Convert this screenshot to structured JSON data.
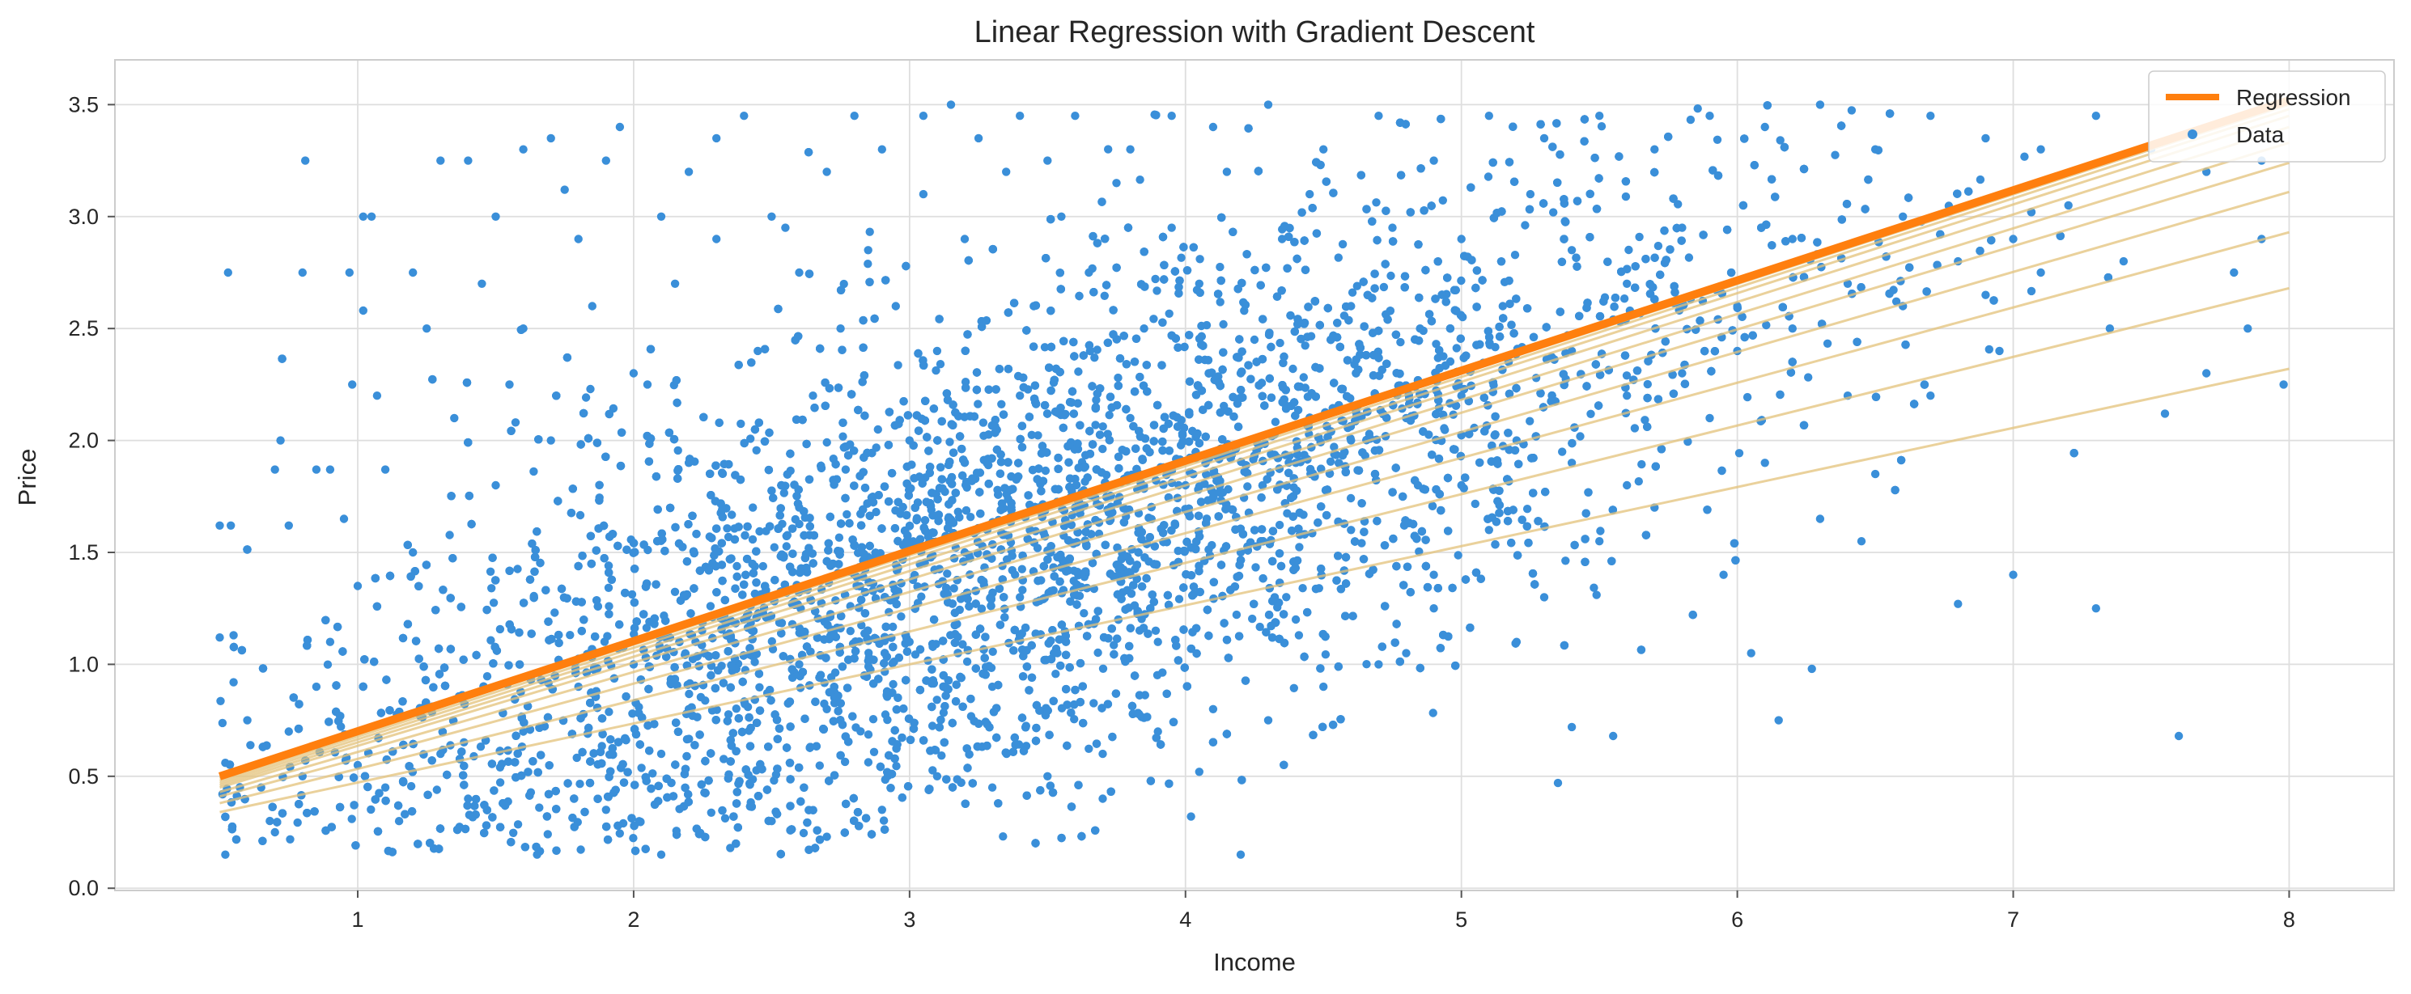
{
  "chart_data": {
    "type": "scatter",
    "title": "Linear Regression with Gradient Descent",
    "xlabel": "Income",
    "ylabel": "Price",
    "xlim": [
      0.12,
      8.38
    ],
    "ylim": [
      -0.01,
      3.7
    ],
    "x_ticks": [
      1,
      2,
      3,
      4,
      5,
      6,
      7,
      8
    ],
    "y_ticks": [
      0.0,
      0.5,
      1.0,
      1.5,
      2.0,
      2.5,
      3.0,
      3.5
    ],
    "y_tick_labels": [
      "0.0",
      "0.5",
      "1.0",
      "1.5",
      "2.0",
      "2.5",
      "3.0",
      "3.5"
    ],
    "grid": true,
    "legend": {
      "placement": "top-right",
      "entries": [
        "Regression",
        "Data"
      ]
    },
    "colors": {
      "data": "#3a8fd9",
      "regression": "#ff7f0e",
      "iterations": "#e3c27a"
    },
    "regression_line": {
      "name": "Regression",
      "x": [
        0.5,
        8.0
      ],
      "y": [
        0.5,
        3.52
      ]
    },
    "gradient_descent_iterations": [
      {
        "x": [
          0.5,
          8.0
        ],
        "y": [
          0.34,
          2.32
        ]
      },
      {
        "x": [
          0.5,
          8.0
        ],
        "y": [
          0.38,
          2.68
        ]
      },
      {
        "x": [
          0.5,
          8.0
        ],
        "y": [
          0.41,
          2.93
        ]
      },
      {
        "x": [
          0.5,
          8.0
        ],
        "y": [
          0.43,
          3.11
        ]
      },
      {
        "x": [
          0.5,
          8.0
        ],
        "y": [
          0.45,
          3.24
        ]
      },
      {
        "x": [
          0.5,
          8.0
        ],
        "y": [
          0.46,
          3.33
        ]
      },
      {
        "x": [
          0.5,
          8.0
        ],
        "y": [
          0.47,
          3.4
        ]
      },
      {
        "x": [
          0.5,
          8.0
        ],
        "y": [
          0.48,
          3.45
        ]
      },
      {
        "x": [
          0.5,
          8.0
        ],
        "y": [
          0.49,
          3.48
        ]
      },
      {
        "x": [
          0.5,
          8.0
        ],
        "y": [
          0.495,
          3.5
        ]
      },
      {
        "x": [
          0.5,
          8.0
        ],
        "y": [
          0.498,
          3.51
        ]
      }
    ],
    "scatter_series": {
      "name": "Data",
      "points": [
        [
          0.52,
          0.15
        ],
        [
          0.53,
          2.75
        ],
        [
          0.5,
          1.62
        ],
        [
          0.54,
          1.62
        ],
        [
          0.5,
          1.12
        ],
        [
          0.55,
          1.13
        ],
        [
          0.52,
          0.56
        ],
        [
          0.55,
          0.92
        ],
        [
          0.6,
          0.75
        ],
        [
          0.7,
          1.87
        ],
        [
          0.72,
          2.0
        ],
        [
          0.75,
          1.62
        ],
        [
          0.81,
          3.25
        ],
        [
          0.8,
          2.75
        ],
        [
          0.85,
          1.87
        ],
        [
          0.9,
          1.87
        ],
        [
          0.97,
          2.75
        ],
        [
          0.98,
          2.25
        ],
        [
          1.02,
          3.0
        ],
        [
          1.05,
          3.0
        ],
        [
          1.02,
          2.58
        ],
        [
          1.07,
          2.2
        ],
        [
          1.1,
          1.87
        ],
        [
          1.2,
          2.75
        ],
        [
          1.25,
          2.5
        ],
        [
          1.3,
          3.25
        ],
        [
          1.4,
          3.25
        ],
        [
          1.45,
          2.7
        ],
        [
          1.5,
          3.0
        ],
        [
          1.55,
          2.25
        ],
        [
          1.6,
          3.3
        ],
        [
          1.7,
          3.35
        ],
        [
          1.75,
          3.12
        ],
        [
          1.8,
          2.9
        ],
        [
          1.9,
          3.25
        ],
        [
          1.95,
          3.4
        ],
        [
          2.05,
          2.25
        ],
        [
          2.1,
          3.0
        ],
        [
          2.2,
          3.2
        ],
        [
          2.3,
          3.35
        ],
        [
          2.4,
          3.45
        ],
        [
          2.5,
          3.0
        ],
        [
          2.6,
          2.75
        ],
        [
          2.7,
          3.2
        ],
        [
          2.8,
          3.45
        ],
        [
          2.9,
          3.3
        ],
        [
          3.05,
          3.45
        ],
        [
          3.15,
          3.5
        ],
        [
          3.25,
          3.35
        ],
        [
          3.4,
          3.45
        ],
        [
          3.5,
          3.25
        ],
        [
          3.6,
          3.45
        ],
        [
          3.8,
          3.3
        ],
        [
          3.95,
          3.45
        ],
        [
          4.1,
          3.4
        ],
        [
          4.3,
          3.5
        ],
        [
          4.5,
          3.3
        ],
        [
          4.7,
          3.45
        ],
        [
          4.9,
          3.25
        ],
        [
          5.1,
          3.45
        ],
        [
          5.3,
          3.35
        ],
        [
          5.5,
          3.45
        ],
        [
          5.7,
          3.3
        ],
        [
          5.9,
          3.45
        ],
        [
          6.1,
          3.4
        ],
        [
          6.3,
          3.5
        ],
        [
          6.5,
          3.3
        ],
        [
          6.7,
          3.45
        ],
        [
          6.9,
          3.35
        ],
        [
          7.1,
          3.3
        ],
        [
          7.3,
          3.45
        ],
        [
          7.5,
          3.3
        ],
        [
          7.7,
          3.2
        ],
        [
          7.9,
          3.25
        ],
        [
          7.98,
          2.25
        ],
        [
          7.85,
          2.5
        ],
        [
          7.7,
          2.3
        ],
        [
          7.55,
          2.12
        ],
        [
          7.6,
          0.68
        ],
        [
          7.3,
          1.25
        ],
        [
          7.0,
          1.4
        ],
        [
          6.8,
          1.27
        ],
        [
          6.45,
          1.55
        ],
        [
          6.15,
          0.75
        ],
        [
          6.27,
          0.98
        ],
        [
          6.05,
          1.05
        ],
        [
          5.95,
          1.4
        ],
        [
          5.55,
          0.68
        ],
        [
          5.35,
          0.47
        ],
        [
          5.4,
          0.72
        ],
        [
          4.2,
          0.15
        ],
        [
          4.02,
          0.32
        ],
        [
          4.05,
          0.52
        ],
        [
          3.7,
          0.4
        ],
        [
          2.7,
          0.23
        ],
        [
          2.1,
          0.15
        ],
        [
          1.65,
          0.15
        ],
        [
          2.35,
          0.18
        ],
        [
          4.8,
          1.05
        ],
        [
          5.2,
          1.1
        ],
        [
          0.95,
          1.65
        ],
        [
          1.0,
          1.35
        ],
        [
          0.9,
          1.1
        ],
        [
          0.85,
          0.9
        ],
        [
          0.75,
          0.7
        ],
        [
          0.65,
          0.45
        ],
        [
          0.7,
          0.25
        ],
        [
          0.8,
          0.5
        ],
        [
          1.15,
          0.3
        ],
        [
          1.2,
          1.5
        ],
        [
          1.35,
          2.1
        ],
        [
          1.5,
          1.8
        ],
        [
          1.6,
          2.5
        ],
        [
          1.7,
          2.0
        ],
        [
          1.85,
          2.6
        ],
        [
          2.0,
          2.3
        ],
        [
          2.15,
          2.7
        ],
        [
          2.3,
          2.9
        ],
        [
          2.45,
          2.4
        ],
        [
          2.55,
          2.95
        ],
        [
          2.65,
          2.2
        ],
        [
          2.75,
          2.5
        ],
        [
          2.85,
          2.85
        ],
        [
          2.95,
          2.6
        ],
        [
          3.05,
          3.1
        ],
        [
          3.1,
          2.4
        ],
        [
          3.2,
          2.9
        ],
        [
          3.35,
          3.2
        ],
        [
          3.45,
          2.6
        ],
        [
          3.55,
          3.0
        ],
        [
          3.65,
          2.75
        ],
        [
          3.75,
          3.15
        ],
        [
          3.85,
          2.5
        ],
        [
          3.95,
          2.95
        ],
        [
          4.05,
          2.7
        ],
        [
          4.15,
          3.2
        ],
        [
          4.25,
          2.45
        ],
        [
          4.35,
          2.9
        ],
        [
          4.45,
          3.1
        ],
        [
          4.6,
          2.6
        ],
        [
          4.75,
          2.95
        ],
        [
          4.85,
          2.5
        ],
        [
          5.0,
          2.9
        ],
        [
          5.15,
          2.6
        ],
        [
          5.25,
          3.1
        ],
        [
          5.4,
          2.85
        ],
        [
          5.6,
          2.7
        ],
        [
          5.8,
          2.95
        ],
        [
          6.0,
          2.6
        ],
        [
          6.2,
          2.9
        ],
        [
          6.4,
          2.7
        ],
        [
          6.6,
          3.0
        ],
        [
          6.8,
          2.8
        ],
        [
          7.0,
          2.9
        ],
        [
          7.2,
          3.05
        ],
        [
          7.4,
          2.8
        ],
        [
          7.8,
          2.75
        ],
        [
          7.9,
          2.9
        ],
        [
          6.95,
          2.4
        ],
        [
          6.7,
          2.2
        ],
        [
          6.5,
          1.85
        ],
        [
          6.3,
          1.65
        ],
        [
          6.1,
          1.9
        ],
        [
          5.9,
          2.1
        ],
        [
          5.7,
          1.7
        ],
        [
          5.5,
          1.55
        ],
        [
          5.3,
          1.3
        ],
        [
          5.1,
          1.6
        ],
        [
          4.9,
          1.25
        ],
        [
          4.7,
          1.0
        ],
        [
          4.5,
          0.9
        ],
        [
          4.3,
          0.75
        ],
        [
          4.1,
          0.8
        ],
        [
          3.9,
          0.7
        ],
        [
          3.7,
          0.6
        ],
        [
          3.5,
          0.5
        ],
        [
          3.3,
          0.45
        ],
        [
          3.1,
          0.5
        ],
        [
          2.9,
          0.35
        ],
        [
          2.5,
          0.3
        ],
        [
          1.9,
          0.35
        ],
        [
          1.4,
          0.4
        ],
        [
          1.1,
          0.45
        ],
        [
          2.2,
          1.9
        ],
        [
          2.6,
          1.7
        ],
        [
          3.0,
          2.0
        ],
        [
          3.4,
          2.2
        ],
        [
          3.8,
          2.1
        ],
        [
          4.2,
          2.3
        ],
        [
          4.6,
          2.0
        ],
        [
          5.0,
          2.2
        ],
        [
          5.4,
          2.4
        ],
        [
          5.8,
          2.3
        ],
        [
          6.2,
          2.5
        ],
        [
          2.4,
          1.2
        ],
        [
          2.8,
          1.4
        ],
        [
          3.2,
          1.5
        ],
        [
          3.6,
          1.7
        ],
        [
          4.0,
          1.8
        ],
        [
          4.4,
          1.9
        ],
        [
          4.8,
          2.1
        ],
        [
          5.2,
          2.0
        ],
        [
          5.6,
          2.2
        ],
        [
          6.0,
          2.4
        ],
        [
          1.8,
          0.9
        ],
        [
          2.0,
          1.0
        ],
        [
          2.2,
          0.8
        ],
        [
          2.6,
          1.0
        ],
        [
          3.0,
          1.1
        ],
        [
          3.4,
          1.3
        ],
        [
          3.8,
          1.4
        ],
        [
          4.2,
          1.5
        ],
        [
          4.6,
          1.6
        ],
        [
          5.0,
          1.8
        ],
        [
          5.4,
          1.9
        ],
        [
          1.6,
          0.7
        ],
        [
          1.3,
          0.6
        ],
        [
          1.0,
          0.55
        ],
        [
          2.1,
          0.6
        ],
        [
          2.7,
          0.8
        ],
        [
          3.3,
          0.9
        ],
        [
          3.9,
          1.1
        ],
        [
          4.4,
          1.2
        ],
        [
          4.9,
          1.4
        ],
        [
          5.6,
          1.8
        ],
        [
          6.4,
          2.2
        ],
        [
          6.6,
          2.6
        ],
        [
          6.9,
          2.65
        ],
        [
          7.1,
          2.75
        ],
        [
          7.35,
          2.5
        ]
      ]
    }
  }
}
